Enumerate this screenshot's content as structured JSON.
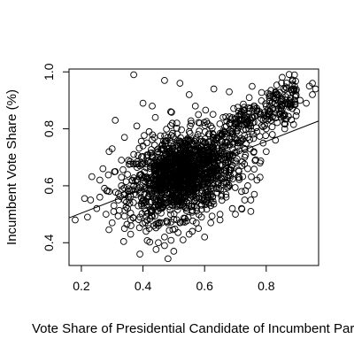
{
  "chart_data": {
    "type": "scatter",
    "title": "",
    "xlabel": "Vote Share of Presidential Candidate of Incumbent Party",
    "ylabel": "Incumbent Vote Share (%)",
    "xlim": [
      0.16,
      0.97
    ],
    "ylim": [
      0.32,
      1.01
    ],
    "xticks": [
      0.2,
      0.4,
      0.6,
      0.8
    ],
    "xtick_labels": [
      "0.2",
      "0.4",
      "0.6",
      "0.8"
    ],
    "yticks": [
      0.4,
      0.6,
      0.8,
      1.0
    ],
    "ytick_labels": [
      "0.4",
      "0.6",
      "0.8",
      "1.0"
    ],
    "grid": false,
    "fit_line": {
      "intercept": 0.42,
      "slope": 0.42
    },
    "series": [
      {
        "points": [
          [
            0.18,
            0.48
          ],
          [
            0.22,
            0.49
          ],
          [
            0.23,
            0.55
          ],
          [
            0.25,
            0.52
          ],
          [
            0.26,
            0.62
          ],
          [
            0.27,
            0.66
          ],
          [
            0.28,
            0.5
          ],
          [
            0.29,
            0.58
          ],
          [
            0.3,
            0.47
          ],
          [
            0.3,
            0.73
          ],
          [
            0.31,
            0.83
          ],
          [
            0.32,
            0.55
          ],
          [
            0.33,
            0.69
          ],
          [
            0.33,
            0.6
          ],
          [
            0.34,
            0.77
          ],
          [
            0.35,
            0.52
          ],
          [
            0.35,
            0.64
          ],
          [
            0.36,
            0.43
          ],
          [
            0.37,
            0.71
          ],
          [
            0.37,
            0.57
          ],
          [
            0.38,
            0.81
          ],
          [
            0.38,
            0.62
          ],
          [
            0.39,
            0.49
          ],
          [
            0.39,
            0.67
          ],
          [
            0.4,
            0.74
          ],
          [
            0.4,
            0.55
          ],
          [
            0.41,
            0.44
          ],
          [
            0.41,
            0.63
          ],
          [
            0.42,
            0.79
          ],
          [
            0.42,
            0.58
          ],
          [
            0.43,
            0.7
          ],
          [
            0.43,
            0.51
          ],
          [
            0.44,
            0.66
          ],
          [
            0.44,
            0.84
          ],
          [
            0.45,
            0.46
          ],
          [
            0.45,
            0.61
          ],
          [
            0.46,
            0.73
          ],
          [
            0.46,
            0.54
          ],
          [
            0.47,
            0.68
          ],
          [
            0.47,
            0.42
          ],
          [
            0.48,
            0.77
          ],
          [
            0.48,
            0.59
          ],
          [
            0.49,
            0.64
          ],
          [
            0.49,
            0.5
          ],
          [
            0.5,
            0.71
          ],
          [
            0.5,
            0.56
          ],
          [
            0.51,
            0.82
          ],
          [
            0.51,
            0.62
          ],
          [
            0.52,
            0.47
          ],
          [
            0.52,
            0.67
          ],
          [
            0.53,
            0.74
          ],
          [
            0.53,
            0.58
          ],
          [
            0.54,
            0.52
          ],
          [
            0.54,
            0.69
          ],
          [
            0.55,
            0.79
          ],
          [
            0.55,
            0.61
          ],
          [
            0.56,
            0.44
          ],
          [
            0.56,
            0.65
          ],
          [
            0.57,
            0.72
          ],
          [
            0.57,
            0.55
          ],
          [
            0.58,
            0.68
          ],
          [
            0.58,
            0.85
          ],
          [
            0.59,
            0.6
          ],
          [
            0.59,
            0.49
          ],
          [
            0.6,
            0.75
          ],
          [
            0.6,
            0.64
          ],
          [
            0.61,
            0.57
          ],
          [
            0.61,
            0.7
          ],
          [
            0.62,
            0.81
          ],
          [
            0.62,
            0.53
          ],
          [
            0.63,
            0.66
          ],
          [
            0.63,
            0.73
          ],
          [
            0.64,
            0.59
          ],
          [
            0.64,
            0.77
          ],
          [
            0.65,
            0.62
          ],
          [
            0.65,
            0.5
          ],
          [
            0.66,
            0.71
          ],
          [
            0.66,
            0.84
          ],
          [
            0.67,
            0.65
          ],
          [
            0.67,
            0.56
          ],
          [
            0.68,
            0.74
          ],
          [
            0.68,
            0.6
          ],
          [
            0.69,
            0.79
          ],
          [
            0.69,
            0.52
          ],
          [
            0.7,
            0.68
          ],
          [
            0.7,
            0.82
          ],
          [
            0.71,
            0.63
          ],
          [
            0.71,
            0.75
          ],
          [
            0.72,
            0.58
          ],
          [
            0.72,
            0.86
          ],
          [
            0.73,
            0.7
          ],
          [
            0.73,
            0.55
          ],
          [
            0.74,
            0.77
          ],
          [
            0.74,
            0.66
          ],
          [
            0.75,
            0.81
          ],
          [
            0.75,
            0.51
          ],
          [
            0.76,
            0.72
          ],
          [
            0.76,
            0.88
          ],
          [
            0.77,
            0.79
          ],
          [
            0.77,
            0.62
          ],
          [
            0.78,
            0.85
          ],
          [
            0.78,
            0.68
          ],
          [
            0.79,
            0.83
          ],
          [
            0.79,
            0.75
          ],
          [
            0.8,
            0.88
          ],
          [
            0.8,
            0.8
          ],
          [
            0.81,
            0.86
          ],
          [
            0.81,
            0.91
          ],
          [
            0.82,
            0.84
          ],
          [
            0.82,
            0.78
          ],
          [
            0.83,
            0.89
          ],
          [
            0.83,
            0.93
          ],
          [
            0.84,
            0.87
          ],
          [
            0.85,
            0.9
          ],
          [
            0.86,
            0.85
          ],
          [
            0.87,
            0.92
          ],
          [
            0.88,
            0.88
          ],
          [
            0.89,
            0.94
          ],
          [
            0.91,
            0.9
          ],
          [
            0.93,
            0.89
          ],
          [
            0.94,
            0.95
          ],
          [
            0.95,
            0.96
          ],
          [
            0.96,
            0.94
          ],
          [
            0.95,
            0.92
          ],
          [
            0.37,
            0.99
          ],
          [
            0.47,
            0.97
          ],
          [
            0.52,
            0.96
          ],
          [
            0.4,
            0.89
          ],
          [
            0.55,
            0.92
          ],
          [
            0.63,
            0.94
          ],
          [
            0.68,
            0.93
          ],
          [
            0.45,
            0.4
          ],
          [
            0.5,
            0.37
          ],
          [
            0.53,
            0.41
          ],
          [
            0.6,
            0.42
          ],
          [
            0.39,
            0.36
          ],
          [
            0.58,
            0.45
          ],
          [
            0.47,
            0.39
          ],
          [
            0.55,
            0.43
          ],
          [
            0.72,
            0.52
          ],
          [
            0.75,
            0.55
          ],
          [
            0.78,
            0.63
          ],
          [
            0.65,
            0.48
          ],
          [
            0.43,
            0.88
          ],
          [
            0.49,
            0.86
          ],
          [
            0.57,
            0.88
          ],
          [
            0.33,
            0.63
          ],
          [
            0.29,
            0.72
          ],
          [
            0.31,
            0.65
          ],
          [
            0.26,
            0.56
          ],
          [
            0.36,
            0.48
          ],
          [
            0.34,
            0.45
          ],
          [
            0.42,
            0.45
          ],
          [
            0.46,
            0.47
          ],
          [
            0.62,
            0.47
          ],
          [
            0.7,
            0.5
          ],
          [
            0.74,
            0.6
          ],
          [
            0.8,
            0.72
          ],
          [
            0.83,
            0.76
          ],
          [
            0.86,
            0.8
          ]
        ]
      }
    ]
  }
}
